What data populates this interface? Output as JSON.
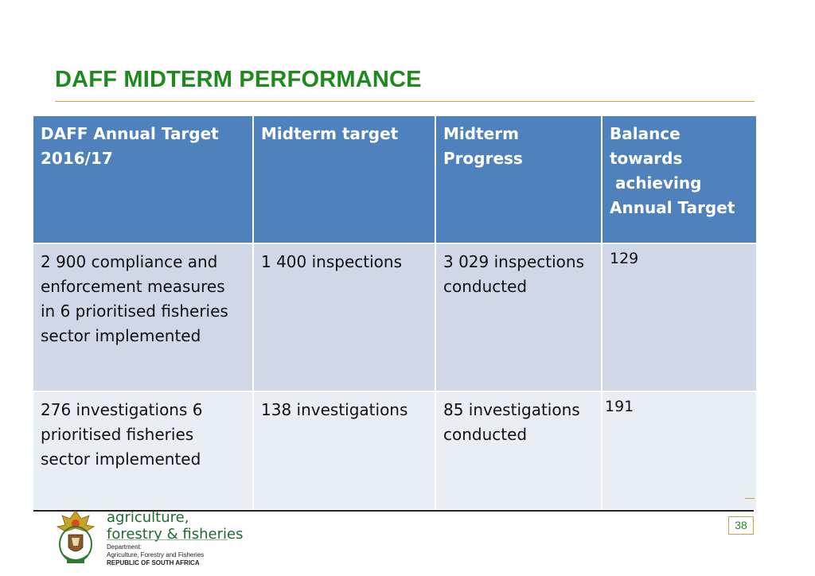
{
  "slide": {
    "title": "DAFF MIDTERM PERFORMANCE",
    "page_number": "38"
  },
  "table": {
    "headers": [
      [
        "DAFF Annual Target",
        "2016/17"
      ],
      [
        "Midterm target"
      ],
      [
        "Midterm",
        "Progress"
      ],
      [
        "Balance towards",
        " achieving",
        "Annual Target"
      ]
    ],
    "rows": [
      [
        [
          "2 900 compliance and",
          "enforcement measures",
          "in 6 prioritised fisheries",
          "sector implemented"
        ],
        [
          "1 400 inspections"
        ],
        [
          "3 029 inspections",
          "conducted"
        ],
        [
          "129"
        ]
      ],
      [
        [
          "276 investigations 6",
          "prioritised fisheries",
          "sector implemented"
        ],
        [
          "138 investigations"
        ],
        [
          "85 investigations",
          "conducted"
        ],
        [
          "191"
        ]
      ]
    ]
  },
  "footer": {
    "dept_lines": [
      "agriculture,",
      "forestry & fisheries"
    ],
    "dept_label": "Department:",
    "dept_full": "Agriculture, Forestry and Fisheries",
    "country": "REPUBLIC OF SOUTH AFRICA",
    "crest_icon": "coat-of-arms-icon"
  },
  "colors": {
    "title_green": "#1e8a1e",
    "header_blue": "#4f81bd",
    "row1_bg": "#d0d8e8",
    "row2_bg": "#e9edf4",
    "rule_gold": "#c8a23c"
  }
}
